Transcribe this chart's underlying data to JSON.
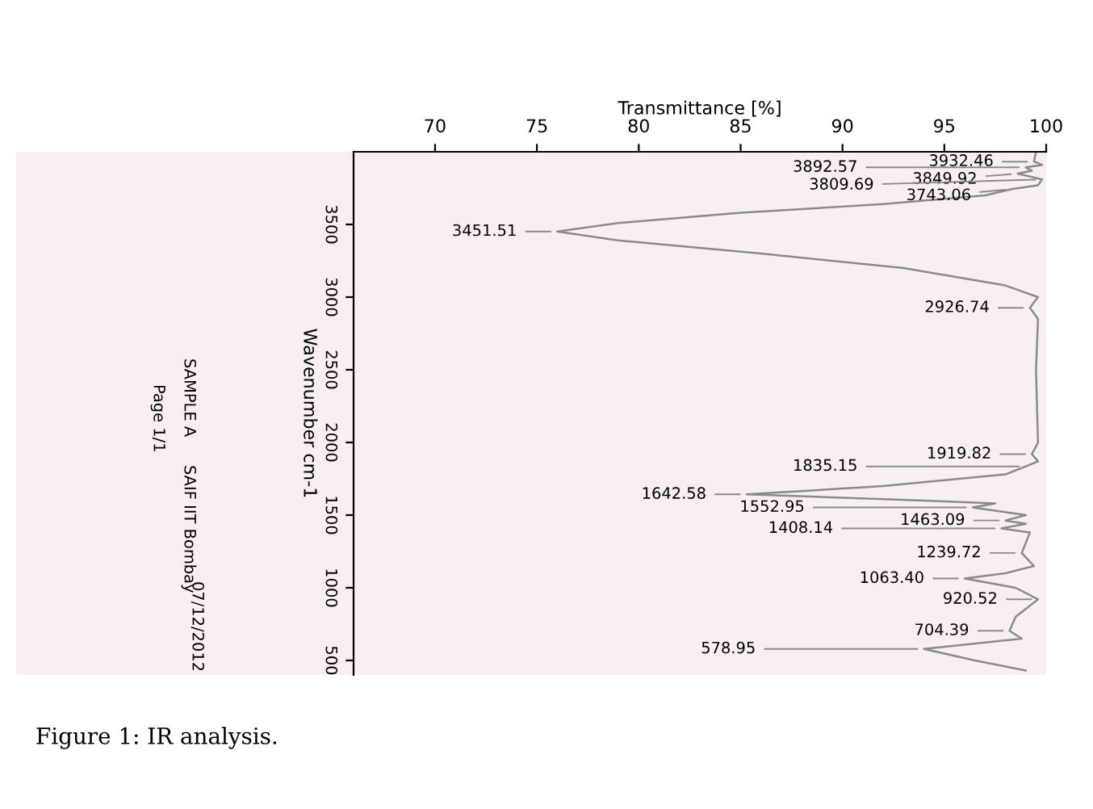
{
  "chart_data": {
    "type": "line",
    "xlabel": "Transmittance [%]",
    "ylabel": "Wavenumber cm-1",
    "xlim": [
      66,
      100
    ],
    "xticks": [
      70,
      75,
      80,
      85,
      90,
      95,
      100
    ],
    "ylim": [
      400,
      4000
    ],
    "yticks": [
      3500,
      3000,
      2500,
      2000,
      1500,
      1000,
      500
    ],
    "grid": false,
    "legend": false,
    "marker": "none",
    "line_style": "solid",
    "series": [
      {
        "color": "#8a8a8a",
        "x": [
          99.5,
          99.4,
          99.8,
          99.0,
          99.3,
          98.6,
          99.8,
          99.6,
          98.3,
          97.0,
          92.0,
          85.0,
          79.0,
          76.0,
          79.0,
          86.0,
          93.0,
          98.0,
          99.6,
          99.2,
          99.6,
          99.5,
          99.6,
          99.3,
          99.6,
          99.0,
          98.0,
          92.0,
          85.3,
          94.0,
          97.5,
          96.4,
          99.0,
          98.0,
          99.0,
          97.8,
          99.2,
          98.8,
          99.4,
          98.0,
          96.0,
          98.5,
          99.6,
          98.5,
          98.2,
          98.8,
          94.0,
          96.5,
          99.0
        ],
        "values": [
          4000,
          3932.46,
          3910,
          3892.57,
          3870,
          3849.92,
          3809.69,
          3770,
          3743.06,
          3700,
          3640,
          3580,
          3510,
          3451.51,
          3390,
          3300,
          3200,
          3080,
          3000,
          2926.74,
          2850,
          2500,
          2000,
          1919.82,
          1870,
          1835.15,
          1780,
          1700,
          1642.58,
          1600,
          1580,
          1552.95,
          1500,
          1463.09,
          1440,
          1408.14,
          1380,
          1239.72,
          1150,
          1100,
          1063.4,
          1000,
          920.52,
          800,
          704.39,
          650,
          578.95,
          500,
          430
        ]
      }
    ],
    "annotations": [
      {
        "text": "3932.46",
        "x": 99.4,
        "y": 3932.46
      },
      {
        "text": "3892.57",
        "x": 99.0,
        "y": 3892.57
      },
      {
        "text": "3849.92",
        "x": 98.6,
        "y": 3849.92
      },
      {
        "text": "3809.69",
        "x": 99.8,
        "y": 3809.69
      },
      {
        "text": "3743.06",
        "x": 98.3,
        "y": 3743.06
      },
      {
        "text": "3451.51",
        "x": 76.0,
        "y": 3451.51
      },
      {
        "text": "2926.74",
        "x": 99.2,
        "y": 2926.74
      },
      {
        "text": "1919.82",
        "x": 99.3,
        "y": 1919.82
      },
      {
        "text": "1835.15",
        "x": 99.0,
        "y": 1835.15
      },
      {
        "text": "1642.58",
        "x": 85.3,
        "y": 1642.58
      },
      {
        "text": "1552.95",
        "x": 96.4,
        "y": 1552.95
      },
      {
        "text": "1463.09",
        "x": 98.0,
        "y": 1463.09
      },
      {
        "text": "1408.14",
        "x": 97.8,
        "y": 1408.14
      },
      {
        "text": "1239.72",
        "x": 98.8,
        "y": 1239.72
      },
      {
        "text": "1063.40",
        "x": 96.0,
        "y": 1063.4
      },
      {
        "text": "920.52",
        "x": 99.6,
        "y": 920.52
      },
      {
        "text": "704.39",
        "x": 98.2,
        "y": 704.39
      },
      {
        "text": "578.95",
        "x": 94.0,
        "y": 578.95
      },
      "SAMPLE A",
      "SAIF IIT Bombay",
      "Page 1/1",
      "07/12/2012",
      "Figure 1: IR analysis."
    ]
  }
}
